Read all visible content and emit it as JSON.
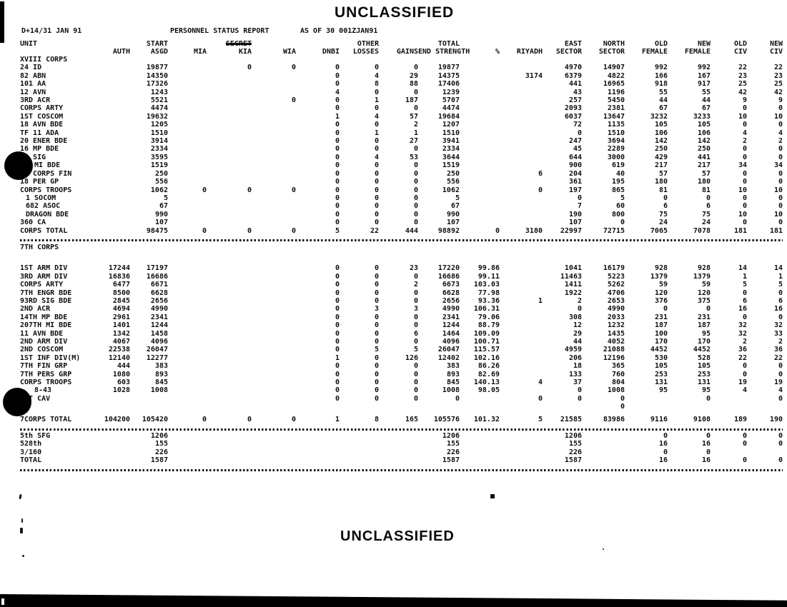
{
  "classification_banner": {
    "top": "UNCLASSIFIED",
    "bottom": "UNCLASSIFIED"
  },
  "report": {
    "date_line": "D+14/31 JAN 91",
    "title": "PERSONNEL STATUS REPORT",
    "as_of": "AS OF 30 001ZJAN91"
  },
  "table": {
    "header_row1": [
      "UNIT",
      "",
      "START",
      "",
      "SECRET",
      "",
      "",
      "OTHER",
      "",
      "TOTAL",
      "",
      "",
      "EAST",
      "NORTH",
      "OLD",
      "NEW",
      "OLD",
      "NEW"
    ],
    "header_row2": [
      "",
      "AUTH",
      "ASGD",
      "MIA",
      "KIA",
      "WIA",
      "DNBI",
      "LOSSES",
      "GAINS",
      "END STRENGTH",
      "%",
      "RIYADH",
      "SECTOR",
      "SECTOR",
      "FEMALE",
      "FEMALE",
      "CIV",
      "CIV"
    ],
    "rows": [
      {
        "t": "sec",
        "c": [
          "XVIII CORPS",
          "",
          "",
          "",
          "",
          "",
          "",
          "",
          "",
          "",
          "",
          "",
          "",
          "",
          "",
          "",
          "",
          ""
        ]
      },
      {
        "t": "r",
        "c": [
          "24 ID",
          "",
          "19877",
          "",
          "0",
          "0",
          "0",
          "0",
          "0",
          "19877",
          "",
          "",
          "4970",
          "14907",
          "992",
          "992",
          "22",
          "22"
        ]
      },
      {
        "t": "r",
        "c": [
          "82 ABN",
          "",
          "14350",
          "",
          "",
          "",
          "0",
          "4",
          "29",
          "14375",
          "",
          "3174",
          "6379",
          "4822",
          "166",
          "167",
          "23",
          "23"
        ]
      },
      {
        "t": "r",
        "c": [
          "101 AA",
          "",
          "17326",
          "",
          "",
          "",
          "0",
          "8",
          "88",
          "17406",
          "",
          "",
          "441",
          "16965",
          "918",
          "917",
          "25",
          "25"
        ]
      },
      {
        "t": "r",
        "c": [
          "12 AVN",
          "",
          "1243",
          "",
          "",
          "",
          "4",
          "0",
          "0",
          "1239",
          "",
          "",
          "43",
          "1196",
          "55",
          "55",
          "42",
          "42"
        ]
      },
      {
        "t": "r",
        "c": [
          "3RD ACR",
          "",
          "5521",
          "",
          "",
          "0",
          "0",
          "1",
          "187",
          "5707",
          "",
          "",
          "257",
          "5450",
          "44",
          "44",
          "9",
          "9"
        ]
      },
      {
        "t": "r",
        "c": [
          "CORPS ARTY",
          "",
          "4474",
          "",
          "",
          "",
          "0",
          "0",
          "0",
          "4474",
          "",
          "",
          "2093",
          "2381",
          "67",
          "67",
          "0",
          "0"
        ]
      },
      {
        "t": "r",
        "c": [
          "1ST COSCOM",
          "",
          "19632",
          "",
          "",
          "",
          "1",
          "4",
          "57",
          "19684",
          "",
          "",
          "6037",
          "13647",
          "3232",
          "3233",
          "10",
          "10"
        ]
      },
      {
        "t": "r",
        "c": [
          "18 AVN BDE",
          "",
          "1205",
          "",
          "",
          "",
          "0",
          "0",
          "2",
          "1207",
          "",
          "",
          "72",
          "1135",
          "105",
          "105",
          "0",
          "0"
        ]
      },
      {
        "t": "r",
        "c": [
          "TF 11 ADA",
          "",
          "1510",
          "",
          "",
          "",
          "0",
          "1",
          "1",
          "1510",
          "",
          "",
          "0",
          "1510",
          "106",
          "106",
          "4",
          "4"
        ]
      },
      {
        "t": "r",
        "c": [
          "20 ENER BDE",
          "",
          "3914",
          "",
          "",
          "",
          "0",
          "0",
          "27",
          "3941",
          "",
          "",
          "247",
          "3694",
          "142",
          "142",
          "2",
          "2"
        ]
      },
      {
        "t": "r",
        "c": [
          "16 MP BDE",
          "",
          "2334",
          "",
          "",
          "",
          "0",
          "0",
          "0",
          "2334",
          "",
          "",
          "45",
          "2289",
          "250",
          "250",
          "0",
          "0"
        ]
      },
      {
        "t": "r",
        "c": [
          "35 SIG",
          "",
          "3595",
          "",
          "",
          "",
          "0",
          "4",
          "53",
          "3644",
          "",
          "",
          "644",
          "3000",
          "429",
          "441",
          "0",
          "0"
        ]
      },
      {
        "t": "r",
        "pad": 20,
        "c": [
          "MI BDE",
          "",
          "1519",
          "",
          "",
          "",
          "0",
          "0",
          "0",
          "1519",
          "",
          "",
          "900",
          "619",
          "217",
          "217",
          "34",
          "34"
        ]
      },
      {
        "t": "r",
        "c": [
          "18 CORPS FIN",
          "",
          "250",
          "",
          "",
          "",
          "0",
          "0",
          "0",
          "250",
          "",
          "6",
          "204",
          "40",
          "57",
          "57",
          "0",
          "0"
        ]
      },
      {
        "t": "r",
        "c": [
          "18 PER GP",
          "",
          "556",
          "",
          "",
          "",
          "0",
          "0",
          "0",
          "556",
          "",
          "",
          "361",
          "195",
          "180",
          "180",
          "0",
          "0"
        ]
      },
      {
        "t": "r",
        "c": [
          "CORPS TROOPS",
          "",
          "1062",
          "0",
          "0",
          "0",
          "0",
          "0",
          "0",
          "1062",
          "",
          "0",
          "197",
          "865",
          "81",
          "81",
          "10",
          "10"
        ]
      },
      {
        "t": "r",
        "pad": 8,
        "c": [
          "1 SOCOM",
          "",
          "5",
          "",
          "",
          "",
          "0",
          "0",
          "0",
          "5",
          "",
          "",
          "0",
          "5",
          "0",
          "0",
          "0",
          "0"
        ]
      },
      {
        "t": "r",
        "pad": 8,
        "c": [
          "682 ASOC",
          "",
          "67",
          "",
          "",
          "",
          "0",
          "0",
          "0",
          "67",
          "",
          "",
          "7",
          "60",
          "6",
          "6",
          "0",
          "0"
        ]
      },
      {
        "t": "r",
        "pad": 8,
        "c": [
          "DRAGON BDE",
          "",
          "990",
          "",
          "",
          "",
          "0",
          "0",
          "0",
          "990",
          "",
          "",
          "190",
          "800",
          "75",
          "75",
          "10",
          "10"
        ]
      },
      {
        "t": "r",
        "c": [
          "360 CA",
          "",
          "107",
          "",
          "",
          "",
          "0",
          "0",
          "0",
          "107",
          "",
          "",
          "107",
          "0",
          "24",
          "24",
          "0",
          "0"
        ]
      },
      {
        "t": "tot",
        "c": [
          "CORPS TOTAL",
          "",
          "98475",
          "0",
          "0",
          "0",
          "5",
          "22",
          "444",
          "98892",
          "0",
          "3180",
          "22997",
          "72715",
          "7065",
          "7078",
          "181",
          "181"
        ]
      },
      {
        "t": "dash"
      },
      {
        "t": "sec",
        "c": [
          "7TH CORPS",
          "",
          "",
          "",
          "",
          "",
          "",
          "",
          "",
          "",
          "",
          "",
          "",
          "",
          "",
          "",
          "",
          ""
        ]
      },
      {
        "t": "sp",
        "h": 18
      },
      {
        "t": "r",
        "c": [
          "1ST ARM DIV",
          "17244",
          "17197",
          "",
          "",
          "",
          "0",
          "0",
          "23",
          "17220",
          "99.86",
          "",
          "1041",
          "16179",
          "928",
          "928",
          "14",
          "14"
        ]
      },
      {
        "t": "r",
        "c": [
          "3RD ARM DIV",
          "16836",
          "16686",
          "",
          "",
          "",
          "0",
          "0",
          "0",
          "16686",
          "99.11",
          "",
          "11463",
          "5223",
          "1379",
          "1379",
          "1",
          "1"
        ]
      },
      {
        "t": "r",
        "c": [
          "CORPS ARTY",
          "6477",
          "6671",
          "",
          "",
          "",
          "0",
          "0",
          "2",
          "6673",
          "103.03",
          "",
          "1411",
          "5262",
          "59",
          "59",
          "5",
          "5"
        ]
      },
      {
        "t": "r",
        "c": [
          "7TH ENGR BDE",
          "8500",
          "6628",
          "",
          "",
          "",
          "0",
          "0",
          "0",
          "6628",
          "77.98",
          "",
          "1922",
          "4706",
          "120",
          "120",
          "0",
          "0"
        ]
      },
      {
        "t": "r",
        "c": [
          "93RD SIG BDE",
          "2845",
          "2656",
          "",
          "",
          "",
          "0",
          "0",
          "0",
          "2656",
          "93.36",
          "1",
          "2",
          "2653",
          "376",
          "375",
          "6",
          "6"
        ]
      },
      {
        "t": "r",
        "c": [
          "2ND ACR",
          "4694",
          "4990",
          "",
          "",
          "",
          "0",
          "3",
          "3",
          "4990",
          "106.31",
          "",
          "0",
          "4990",
          "0",
          "0",
          "16",
          "16"
        ]
      },
      {
        "t": "r",
        "c": [
          "14TH MP BDE",
          "2961",
          "2341",
          "",
          "",
          "",
          "0",
          "0",
          "0",
          "2341",
          "79.06",
          "",
          "308",
          "2033",
          "231",
          "231",
          "0",
          "0"
        ]
      },
      {
        "t": "r",
        "c": [
          "207TH MI BDE",
          "1401",
          "1244",
          "",
          "",
          "",
          "0",
          "0",
          "0",
          "1244",
          "88.79",
          "",
          "12",
          "1232",
          "187",
          "187",
          "32",
          "32"
        ]
      },
      {
        "t": "r",
        "c": [
          "11 AVN BDE",
          "1342",
          "1458",
          "",
          "",
          "",
          "0",
          "0",
          "6",
          "1464",
          "109.09",
          "",
          "29",
          "1435",
          "100",
          "95",
          "32",
          "33"
        ]
      },
      {
        "t": "r",
        "c": [
          "2ND ARM DIV",
          "4067",
          "4096",
          "",
          "",
          "",
          "0",
          "0",
          "0",
          "4096",
          "100.71",
          "",
          "44",
          "4052",
          "170",
          "170",
          "2",
          "2"
        ]
      },
      {
        "t": "r",
        "c": [
          "2ND COSCOM",
          "22538",
          "26047",
          "",
          "",
          "",
          "0",
          "5",
          "5",
          "26047",
          "115.57",
          "",
          "4959",
          "21088",
          "4452",
          "4452",
          "36",
          "36"
        ]
      },
      {
        "t": "r",
        "c": [
          "1ST INF DIV(M)",
          "12140",
          "12277",
          "",
          "",
          "",
          "1",
          "0",
          "126",
          "12402",
          "102.16",
          "",
          "206",
          "12196",
          "530",
          "528",
          "22",
          "22"
        ]
      },
      {
        "t": "r",
        "c": [
          "7TH FIN GRP",
          "444",
          "383",
          "",
          "",
          "",
          "0",
          "0",
          "0",
          "383",
          "86.26",
          "",
          "18",
          "365",
          "105",
          "105",
          "0",
          "0"
        ]
      },
      {
        "t": "r",
        "c": [
          "7TH PERS GRP",
          "1080",
          "893",
          "",
          "",
          "",
          "0",
          "0",
          "0",
          "893",
          "82.69",
          "",
          "133",
          "760",
          "253",
          "253",
          "0",
          "0"
        ]
      },
      {
        "t": "r",
        "c": [
          "CORPS TROOPS",
          "603",
          "845",
          "",
          "",
          "",
          "0",
          "0",
          "0",
          "845",
          "140.13",
          "4",
          "37",
          "804",
          "131",
          "131",
          "19",
          "19"
        ]
      },
      {
        "t": "r",
        "pad": 20,
        "c": [
          "8-43",
          "1028",
          "1008",
          "",
          "",
          "",
          "0",
          "0",
          "0",
          "1008",
          "98.05",
          "",
          "0",
          "1008",
          "95",
          "95",
          "4",
          "4"
        ]
      },
      {
        "t": "r",
        "c": [
          "1ST CAV",
          "",
          "",
          "",
          "",
          "",
          "0",
          "0",
          "0",
          "0",
          "",
          "0",
          "0",
          "0",
          "",
          "0",
          "",
          "0"
        ]
      },
      {
        "t": "r",
        "c": [
          "",
          "",
          "",
          "",
          "",
          "",
          "",
          "",
          "",
          "",
          "",
          "",
          "",
          "0",
          "",
          "",
          "",
          ""
        ]
      },
      {
        "t": "sp",
        "h": 6
      },
      {
        "t": "tot",
        "c": [
          "7CORPS TOTAL",
          "104200",
          "105420",
          "0",
          "0",
          "0",
          "1",
          "8",
          "165",
          "105576",
          "101.32",
          "5",
          "21585",
          "83986",
          "9116",
          "9108",
          "189",
          "190"
        ]
      },
      {
        "t": "dash"
      },
      {
        "t": "r",
        "c": [
          "5th SFG",
          "",
          "1206",
          "",
          "",
          "",
          "",
          "",
          "",
          "1206",
          "",
          "",
          "1206",
          "",
          "0",
          "0",
          "0",
          "0"
        ]
      },
      {
        "t": "r",
        "c": [
          "528th",
          "",
          "155",
          "",
          "",
          "",
          "",
          "",
          "",
          "155",
          "",
          "",
          "155",
          "",
          "16",
          "16",
          "0",
          "0"
        ]
      },
      {
        "t": "r",
        "c": [
          "3/160",
          "",
          "226",
          "",
          "",
          "",
          "",
          "",
          "",
          "226",
          "",
          "",
          "226",
          "",
          "0",
          "0",
          "",
          ""
        ]
      },
      {
        "t": "tot",
        "c": [
          "TOTAL",
          "",
          "1587",
          "",
          "",
          "",
          "",
          "",
          "",
          "1587",
          "",
          "",
          "1587",
          "",
          "16",
          "16",
          "0",
          "0"
        ]
      },
      {
        "t": "dash"
      }
    ]
  }
}
